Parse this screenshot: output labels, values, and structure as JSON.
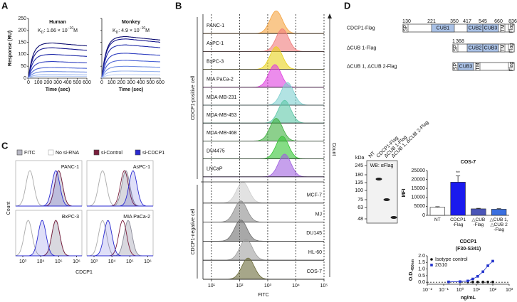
{
  "panels": {
    "a": "A",
    "b": "B",
    "c": "C",
    "d": "D"
  },
  "spr": {
    "ylabel": "Response (RU)",
    "xlabel": "Time (sec)",
    "ylim": [
      0,
      250
    ],
    "yticks": [
      0,
      50,
      100,
      150,
      200,
      250
    ],
    "xlim": [
      0,
      600
    ],
    "xticks": [
      0,
      100,
      200,
      300,
      400,
      500,
      600
    ],
    "colors": [
      "#0a0a6e",
      "#14148c",
      "#1f2aa8",
      "#3040c0",
      "#4a62d4",
      "#6f8ce2",
      "#97b2ee",
      "#bfd2f8"
    ],
    "charts": [
      {
        "title": "Human",
        "kd": {
          "k": "K",
          "d": "D",
          "val": ": 1.66 × 10",
          "exp": "−10",
          "unit": "M"
        },
        "values": [
          148,
          128,
          100,
          70,
          45,
          28,
          15,
          8
        ]
      },
      {
        "title": "Monkey",
        "kd": {
          "k": "K",
          "d": "D",
          "val": ": 4.9 × 10",
          "exp": "−10",
          "unit": "M"
        },
        "values": [
          175,
          165,
          140,
          105,
          75,
          50,
          30,
          15
        ]
      }
    ]
  },
  "flow": {
    "type": "ridgeline",
    "xlabel": "FITC",
    "ylabel": "Count",
    "groups": [
      "CDCP1-positive cell",
      "CDCP1-negative cell"
    ],
    "xlog": true,
    "xlim": [
      5,
      100000
    ],
    "xticks": [
      {
        "value": 10,
        "label": "10¹"
      },
      {
        "value": 100,
        "label": "10²"
      },
      {
        "value": 1000,
        "label": "10³"
      },
      {
        "value": 10000,
        "label": "10⁴"
      },
      {
        "value": 100000,
        "label": "10⁵"
      }
    ],
    "samples": [
      {
        "name": "PANC-1",
        "color": "#f5a340",
        "peak": 2000,
        "group": 0
      },
      {
        "name": "AsPC-1",
        "color": "#f07a7a",
        "peak": 3300,
        "group": 0
      },
      {
        "name": "BxPC-3",
        "color": "#e8d21a",
        "peak": 2000,
        "group": 0
      },
      {
        "name": "MIA PaCa-2",
        "color": "#e040e0",
        "peak": 1800,
        "group": 0
      },
      {
        "name": "MDA-MB-231",
        "color": "#7fd0d0",
        "peak": 5000,
        "group": 0
      },
      {
        "name": "MDA-MB-453",
        "color": "#5ec8a8",
        "peak": 4000,
        "group": 0
      },
      {
        "name": "MDA-MB-468",
        "color": "#40b040",
        "peak": 2000,
        "group": 0
      },
      {
        "name": "DU4475",
        "color": "#33c433",
        "peak": 3300,
        "group": 0
      },
      {
        "name": "LNCaP",
        "color": "#a060e0",
        "peak": 4000,
        "group": 0
      },
      {
        "name": "MCF-7",
        "color": "#cfcfcf",
        "peak": 130,
        "group": 1
      },
      {
        "name": "MJ",
        "color": "#8c8c8c",
        "peak": 110,
        "group": 1
      },
      {
        "name": "DU145",
        "color": "#6e6e6e",
        "peak": 110,
        "group": 1
      },
      {
        "name": "HL-60",
        "color": "#a0a0a0",
        "peak": 170,
        "group": 1
      },
      {
        "name": "COS-7",
        "color": "#6b6b3a",
        "peak": 200,
        "group": 1
      }
    ]
  },
  "sirna": {
    "xlabel": "CDCP1",
    "ylabel": "Count",
    "legend": [
      "FITC",
      "No si-RNA",
      "si-Control",
      "si-CDCP1"
    ],
    "colors": [
      "#b8b8c4",
      "#aaaaaa",
      "#7a1f3d",
      "#2a2ad0"
    ],
    "xlog": true,
    "xlim": [
      400,
      2000000
    ],
    "xticks": [
      {
        "value": 1000,
        "label": "10³"
      },
      {
        "value": 10000,
        "label": "10⁴"
      },
      {
        "value": 100000,
        "label": "10⁵"
      },
      {
        "value": 1000000,
        "label": "10⁶"
      }
    ],
    "panels": [
      {
        "name": "PANC-1",
        "peaks": [
          100000,
          2500,
          100000,
          70000
        ]
      },
      {
        "name": "AsPC-1",
        "peaks": [
          60000,
          3000,
          50000,
          150000
        ]
      },
      {
        "name": "BxPC-3",
        "peaks": [
          70000,
          2000,
          70000,
          12000
        ]
      },
      {
        "name": "MIA PaCa-2",
        "peaks": [
          80000,
          3000,
          40000,
          6000
        ]
      }
    ]
  },
  "constructs": [
    {
      "name": "CDCP1-Flag",
      "numbers": [
        1,
        30,
        221,
        350,
        417,
        545,
        660,
        836
      ],
      "domains": [
        "SP",
        "CUB1",
        "CUB2",
        "CUB3",
        "TM",
        "Flag"
      ]
    },
    {
      "name": "ΔCUB 1-Flag",
      "numbers": [
        1,
        368
      ],
      "domains": [
        "SP",
        "CUB2",
        "CUB3",
        "TM",
        "Flag"
      ]
    },
    {
      "name": "ΔCUB 1, ΔCUB 2-Flag",
      "domains": [
        "SP",
        "CUB3",
        "TM",
        "Flag"
      ]
    }
  ],
  "blot": {
    "unit": "kDa",
    "probe": "WB: αFlag",
    "markers": [
      245,
      180,
      135,
      100,
      75,
      63,
      48
    ],
    "lanes": [
      "NT",
      "CDCP1-Flag",
      "ΔCUB 1-Flag",
      "ΔCUB 1, ΔCUB 2-Flag"
    ]
  },
  "mfi": {
    "type": "bar",
    "title": "COS-7",
    "ylabel": "MFI",
    "categories": [
      "NT",
      "CDCP1\n-Flag",
      "△CUB\n-Flag",
      "△CUB 1,\n△CUB 2\n-Flag"
    ],
    "values": [
      4500,
      18500,
      3600,
      3400
    ],
    "errors": [
      300,
      3500,
      300,
      300
    ],
    "colors": [
      "#ffffff",
      "#1a1aee",
      "#4a55b8",
      "#3a6fe0"
    ],
    "annotation": "**",
    "ylim": [
      0,
      25000
    ],
    "yticks": [
      0,
      5000,
      10000,
      15000,
      20000,
      25000
    ]
  },
  "elisa": {
    "type": "scatter",
    "title": "CDCP1",
    "subtitle": "(F30-S341)",
    "ylabel": "O.D.",
    "ylabel_sub": "450nm",
    "xlabel": "ng/mL",
    "xlog": true,
    "xlim": [
      0.01,
      1000
    ],
    "xticks": [
      {
        "value": 0.01,
        "label": "10⁻²"
      },
      {
        "value": 0.1,
        "label": "10⁻¹"
      },
      {
        "value": 1,
        "label": "10⁰"
      },
      {
        "value": 10,
        "label": "10¹"
      },
      {
        "value": 100,
        "label": "10²"
      },
      {
        "value": 1000,
        "label": "10³"
      }
    ],
    "ylim": [
      -0.15,
      2
    ],
    "yticks": [
      {
        "value": 0,
        "label": "0.0"
      },
      {
        "value": 0.5,
        "label": "0.5"
      },
      {
        "value": 1,
        "label": "1.0"
      },
      {
        "value": 1.5,
        "label": "1.5"
      },
      {
        "value": 2,
        "label": "2.0"
      }
    ],
    "x": [
      0.2,
      1,
      3,
      6,
      12,
      25,
      50,
      100
    ],
    "series": [
      {
        "name": "Isotype control",
        "color": "#111111",
        "marker": "circle",
        "values": [
          0.02,
          0.02,
          0.02,
          0.02,
          0.02,
          0.02,
          0.02,
          0.02
        ]
      },
      {
        "name": "2G10",
        "color": "#2233cc",
        "marker": "square",
        "values": [
          0.03,
          0.05,
          0.1,
          0.25,
          0.45,
          0.8,
          1.25,
          1.6
        ]
      }
    ]
  }
}
